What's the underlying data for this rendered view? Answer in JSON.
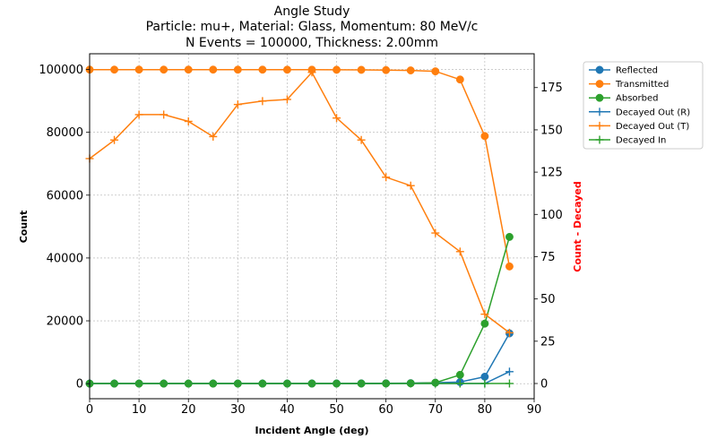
{
  "chart_data": {
    "type": "line",
    "title_lines": [
      "Angle Study",
      "Particle: mu+, Material: Glass, Momentum: 80 MeV/c",
      "N Events = 100000, Thickness: 2.00mm"
    ],
    "xlabel": "Incident Angle (deg)",
    "ylabel": "Count",
    "y2label": "Count - Decayed",
    "xlim": [
      0,
      90
    ],
    "ylim": [
      -4800,
      105000
    ],
    "y2lim": [
      -9,
      195
    ],
    "xticks": [
      0,
      10,
      20,
      30,
      40,
      50,
      60,
      70,
      80,
      90
    ],
    "yticks": [
      0,
      20000,
      40000,
      60000,
      80000,
      100000
    ],
    "y2ticks": [
      0,
      25,
      50,
      75,
      100,
      125,
      150,
      175
    ],
    "grid": true,
    "legend_position": "outside-right",
    "x": [
      0,
      5,
      10,
      15,
      20,
      25,
      30,
      35,
      40,
      45,
      50,
      55,
      60,
      65,
      70,
      75,
      80,
      85
    ],
    "series": [
      {
        "name": "Reflected",
        "axis": "left",
        "marker": "circle",
        "color": "#1f77b4",
        "values": [
          30,
          30,
          30,
          30,
          30,
          40,
          40,
          40,
          40,
          50,
          60,
          80,
          100,
          150,
          300,
          500,
          2200,
          16000
        ]
      },
      {
        "name": "Transmitted",
        "axis": "left",
        "marker": "circle",
        "color": "#ff7f0e",
        "values": [
          99950,
          99950,
          99950,
          99950,
          99950,
          99950,
          99940,
          99940,
          99930,
          99920,
          99900,
          99880,
          99800,
          99700,
          99400,
          96800,
          78800,
          37300
        ]
      },
      {
        "name": "Absorbed",
        "axis": "left",
        "marker": "circle",
        "color": "#2ca02c",
        "values": [
          10,
          10,
          10,
          10,
          10,
          10,
          10,
          10,
          10,
          20,
          20,
          30,
          50,
          100,
          300,
          2800,
          19100,
          46700
        ]
      },
      {
        "name": "Decayed Out (R)",
        "axis": "right",
        "marker": "plus",
        "color": "#1f77b4",
        "values": [
          0,
          0,
          0,
          0,
          0,
          0,
          0,
          0,
          0,
          0,
          0,
          0,
          0,
          0,
          0,
          0,
          0,
          7
        ]
      },
      {
        "name": "Decayed Out (T)",
        "axis": "right",
        "marker": "plus",
        "color": "#ff7f0e",
        "values": [
          133,
          144,
          159,
          159,
          155,
          146,
          165,
          167,
          168,
          184,
          157,
          144,
          122,
          117,
          89,
          78,
          41,
          30
        ]
      },
      {
        "name": "Decayed In",
        "axis": "right",
        "marker": "plus",
        "color": "#2ca02c",
        "values": [
          0,
          0,
          0,
          0,
          0,
          0,
          0,
          0,
          0,
          0,
          0,
          0,
          0,
          0,
          0,
          0,
          0,
          0
        ]
      }
    ]
  }
}
